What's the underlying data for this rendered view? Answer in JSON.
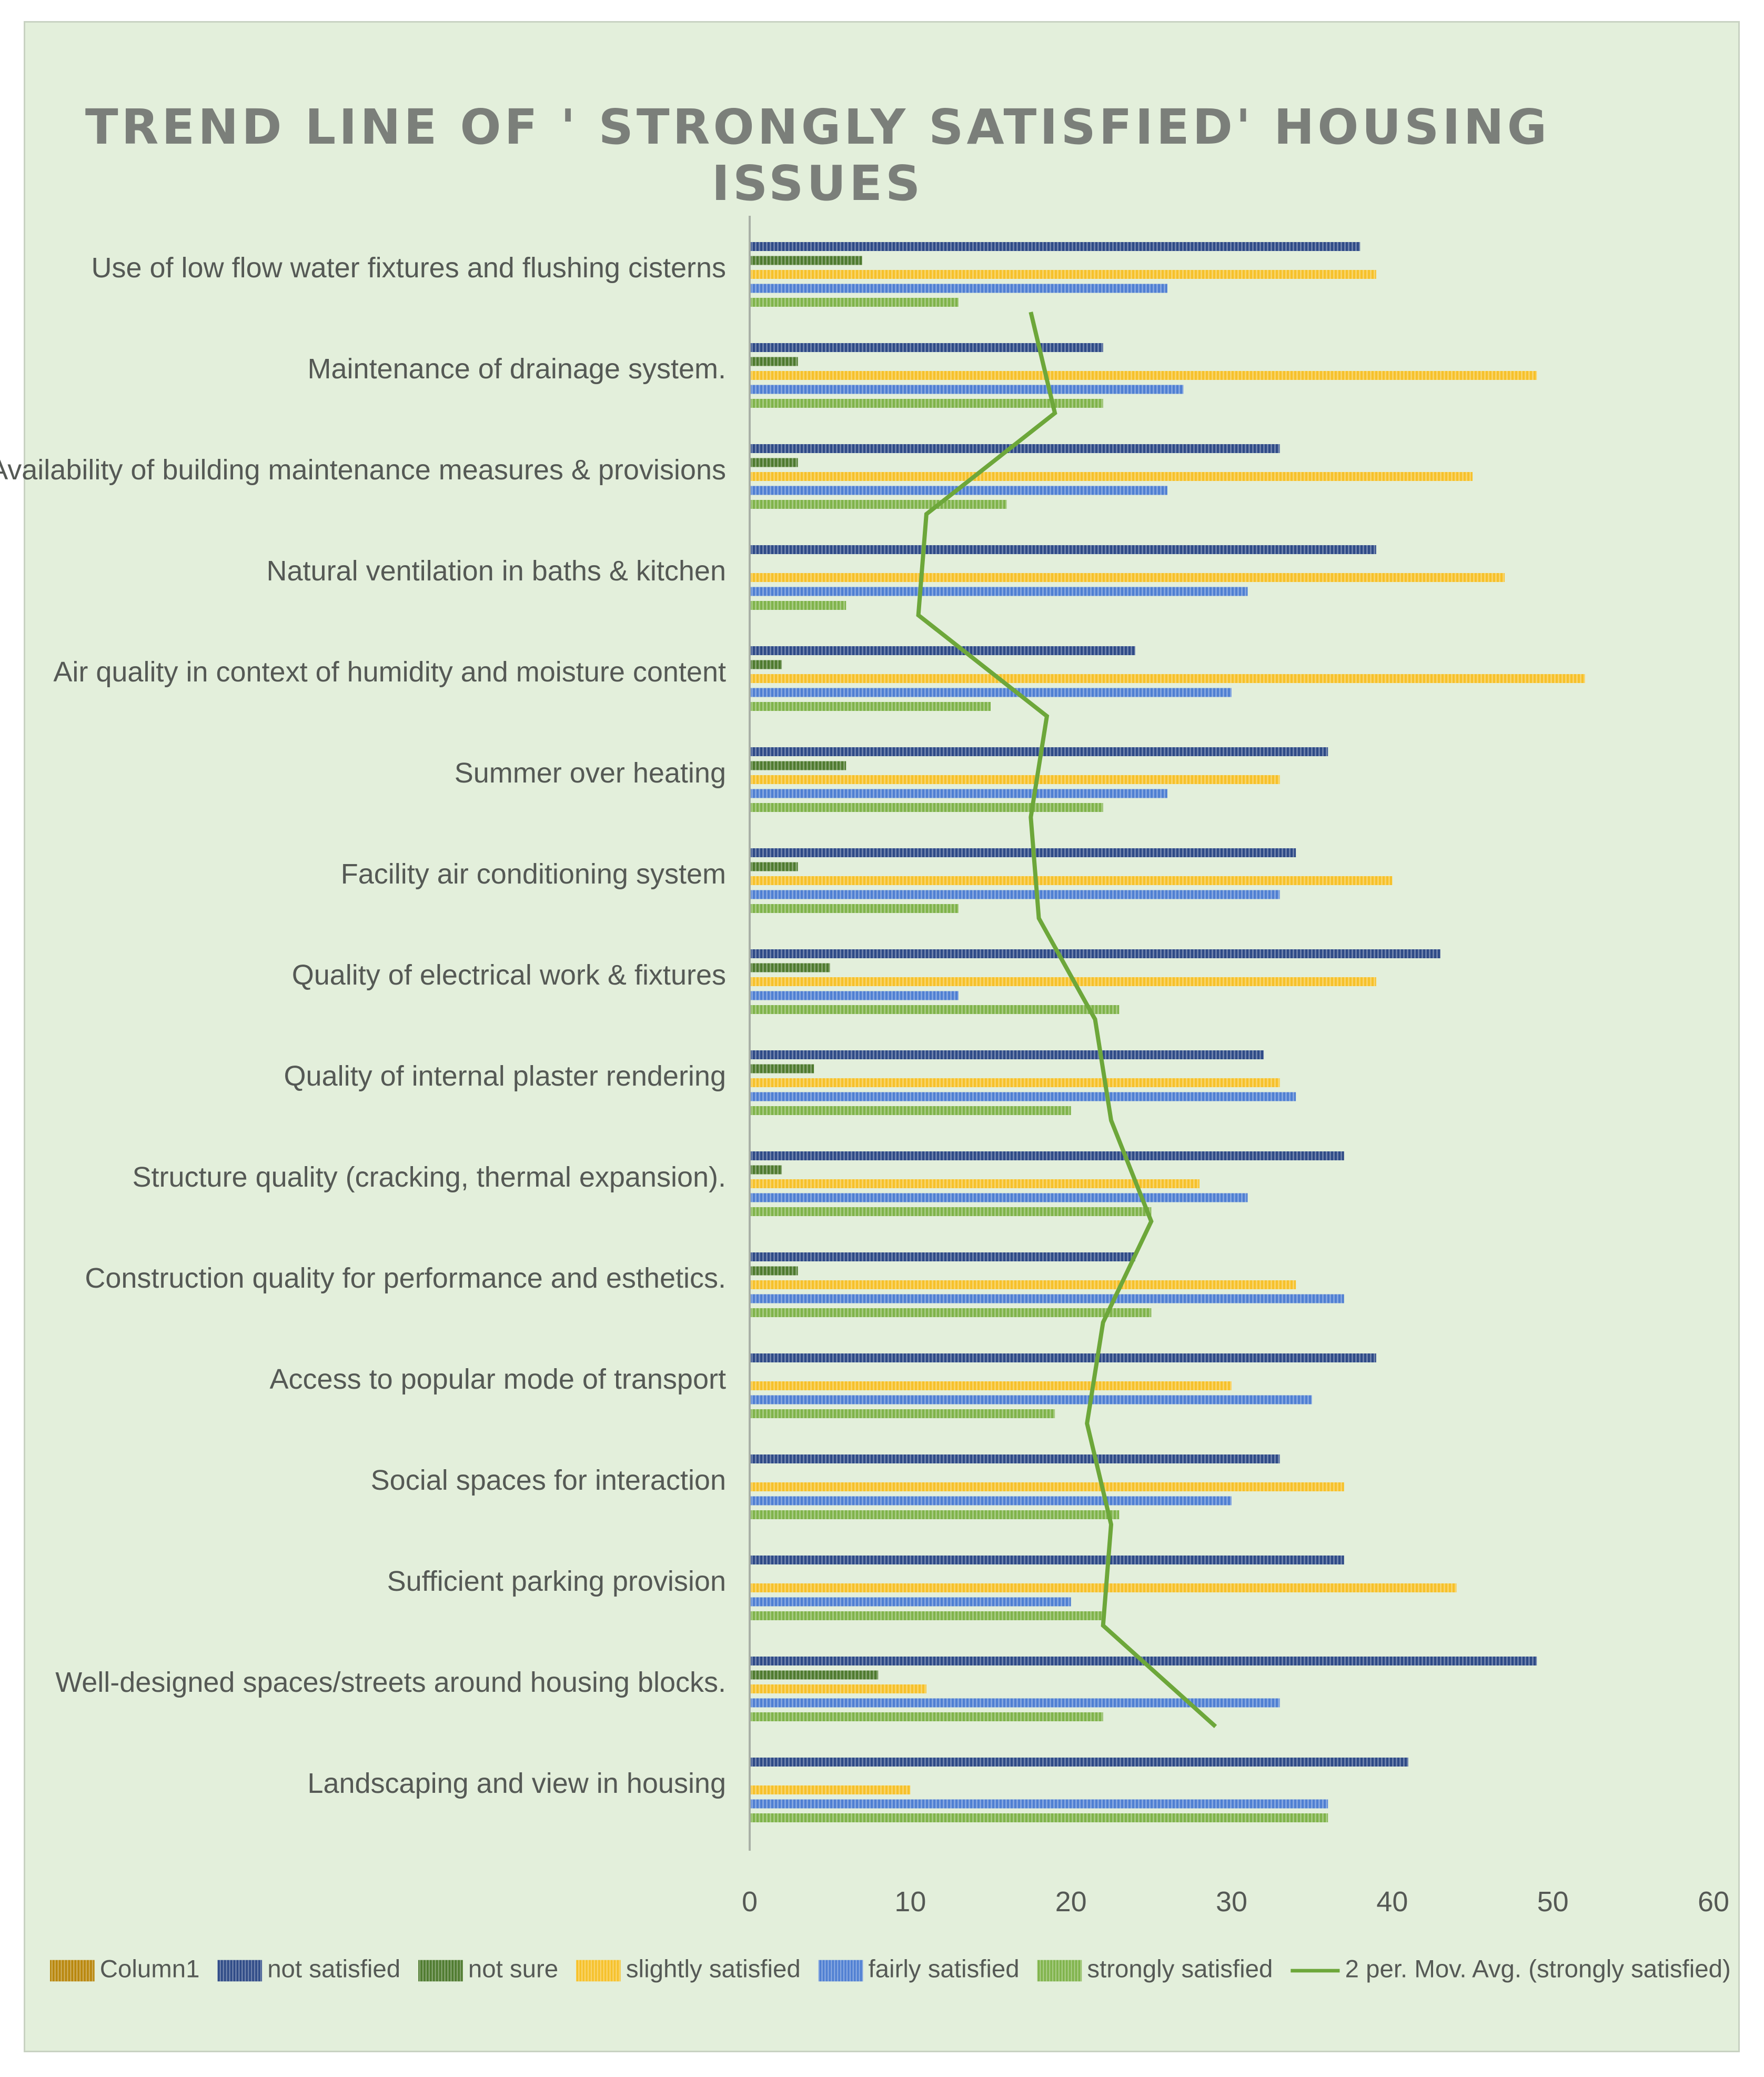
{
  "chart_data": {
    "type": "bar",
    "orientation": "horizontal",
    "title": "TREND LINE OF ' STRONGLY SATISFIED' HOUSING ISSUES",
    "categories": [
      "Use of low flow water fixtures and flushing cisterns",
      "Maintenance of drainage system.",
      "Availability of building maintenance measures & provisions",
      "Natural ventilation in  baths & kitchen",
      "Air quality in context of humidity and moisture content",
      "Summer over heating",
      "Facility  air conditioning system",
      "Quality of electrical work & fixtures",
      "Quality of internal plaster rendering",
      "Structure quality (cracking, thermal expansion).",
      "Construction quality for performance and esthetics.",
      "Access to popular mode of transport",
      "Social spaces for interaction",
      "Sufficient parking provision",
      "Well-designed spaces/streets around housing blocks.",
      "Landscaping and view in housing"
    ],
    "series": [
      {
        "name": "Column1",
        "color": "#b8860b",
        "values": [
          0,
          0,
          0,
          0,
          0,
          0,
          0,
          0,
          0,
          0,
          0,
          0,
          0,
          0,
          0,
          0
        ]
      },
      {
        "name": "not satisfied",
        "color": "#2e4a86",
        "values": [
          38,
          22,
          33,
          39,
          24,
          36,
          34,
          43,
          32,
          37,
          24,
          39,
          33,
          37,
          49,
          41
        ]
      },
      {
        "name": "not sure",
        "color": "#4e7a2e",
        "values": [
          7,
          3,
          3,
          0,
          2,
          6,
          3,
          5,
          4,
          2,
          3,
          0,
          0,
          0,
          8,
          0
        ]
      },
      {
        "name": "slightly satisfied",
        "color": "#f6c12a",
        "values": [
          39,
          49,
          45,
          47,
          52,
          33,
          40,
          39,
          33,
          28,
          34,
          30,
          37,
          44,
          11,
          10
        ]
      },
      {
        "name": "fairly satisfied",
        "color": "#4f7fd2",
        "values": [
          26,
          27,
          26,
          31,
          30,
          26,
          33,
          13,
          34,
          31,
          37,
          35,
          30,
          20,
          33,
          36
        ]
      },
      {
        "name": "strongly satisfied",
        "color": "#7fb34a",
        "values": [
          13,
          22,
          16,
          6,
          15,
          22,
          13,
          23,
          20,
          25,
          25,
          19,
          23,
          22,
          22,
          36
        ]
      }
    ],
    "trendline": {
      "name": "2 per. Mov. Avg. (strongly satisfied)",
      "color": "#6da73a",
      "type": "moving_average",
      "period": 2,
      "of_series": "strongly satisfied"
    },
    "xlim": [
      0,
      60
    ],
    "xticks": [
      0,
      10,
      20,
      30,
      40,
      50,
      60
    ],
    "grid": false,
    "legend_position": "bottom"
  }
}
